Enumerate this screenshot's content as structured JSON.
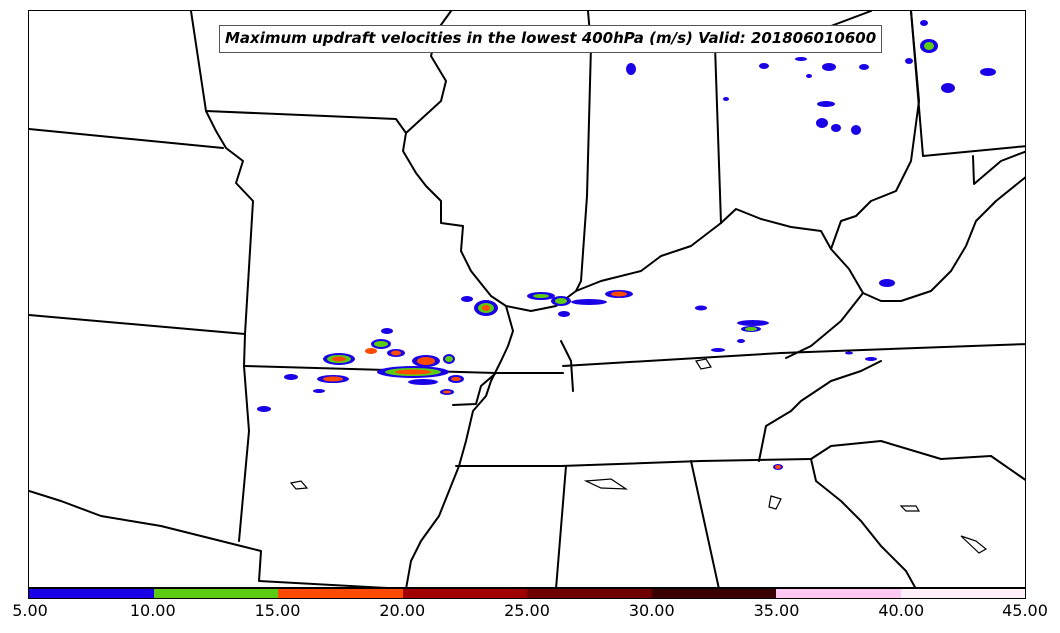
{
  "title": "Maximum updraft velocities in the lowest 400hPa (m/s) Valid: 201806010600",
  "colorbar": {
    "colors": [
      "#1a00e6",
      "#5ccc12",
      "#ff4a00",
      "#a00000",
      "#6e0000",
      "#3a0000",
      "#ffc8f2",
      "#fff0fa"
    ],
    "tick_labels": [
      "5.00",
      "10.00",
      "15.00",
      "20.00",
      "25.00",
      "30.00",
      "35.00",
      "40.00",
      "45.00"
    ]
  },
  "map": {
    "boundary_color": "#000000"
  }
}
